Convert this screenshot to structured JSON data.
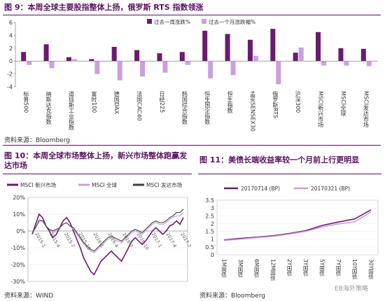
{
  "fig9": {
    "title": "图 9：本周全球主要股指整体上扬，俄罗斯 RTS 指数领涨",
    "source": "资料来源：Bloomberg"
  },
  "fig10": {
    "title": "图 10：本周全球市场整体上扬，新兴市场整体跑赢发达市场",
    "source": "资料来源：WIND"
  },
  "fig11": {
    "title": "图 11：美债长端收益率较一个月前上行更明显",
    "source": "资料来源：Bloomberg"
  },
  "watermark": "EB海外策略",
  "chart_data": [
    {
      "type": "bar",
      "categories": [
        "标普500",
        "纳斯达克指数",
        "道琼斯工业指数",
        "富时100",
        "德国DAX",
        "法国CAC40",
        "日经225",
        "韩国综合指数",
        "恒生国企指数",
        "恒生指数",
        "孟买SENSEX30",
        "俄罗斯RTS",
        "沪深300",
        "MSCI新兴市场",
        "MSCI全球",
        "MSCI发达市场"
      ],
      "series": [
        {
          "name": "过去一周涨跌%",
          "color": "#6a1b6e",
          "values": [
            1.4,
            2.6,
            0.6,
            0.3,
            2.2,
            1.7,
            1.2,
            1.4,
            4.7,
            4.2,
            3.3,
            5.0,
            1.3,
            4.5,
            2.0,
            1.9
          ]
        },
        {
          "name": "过去一个月涨跌幅%",
          "color": "#c9a0dc",
          "values": [
            -0.6,
            -1.1,
            0.3,
            -2.0,
            -3.0,
            -2.4,
            -1.8,
            -0.6,
            -2.7,
            -2.2,
            0.8,
            -3.6,
            2.1,
            -0.7,
            -0.7,
            -0.8
          ]
        }
      ],
      "ylim": [
        -4,
        6
      ],
      "yticks": [
        -4,
        -2,
        0,
        2,
        4,
        6
      ],
      "legend": "top-right"
    },
    {
      "type": "line",
      "series": [
        {
          "name": "MSCI 新兴市场",
          "color": "#6a1b6e",
          "values": [
            -2,
            4,
            10,
            8,
            3,
            0,
            -4,
            -2,
            2,
            6,
            8,
            5,
            0,
            -5,
            -10,
            -16,
            -20,
            -24,
            -26,
            -22,
            -18,
            -16,
            -14,
            -12,
            -14,
            -16,
            -18,
            -14,
            -10,
            -6,
            -4,
            -6,
            -8,
            -6,
            -3,
            0,
            2,
            0,
            -2,
            0,
            3,
            4,
            6,
            4,
            8
          ]
        },
        {
          "name": "MSCI 全球",
          "color": "#c9a0dc",
          "values": [
            -1,
            2,
            7,
            6,
            3,
            1,
            -1,
            0,
            2,
            4,
            5,
            3,
            1,
            -2,
            -5,
            -8,
            -10,
            -12,
            -13,
            -11,
            -9,
            -7,
            -5,
            -4,
            -5,
            -6,
            -7,
            -5,
            -3,
            -1,
            0,
            -1,
            -2,
            0,
            2,
            4,
            5,
            4,
            4,
            5,
            7,
            8,
            9,
            9,
            11
          ]
        },
        {
          "name": "MSCI 发达市场",
          "color": "#404040",
          "values": [
            -1,
            2,
            6,
            6,
            3,
            1,
            0,
            1,
            2,
            4,
            5,
            3,
            2,
            -1,
            -4,
            -7,
            -9,
            -11,
            -12,
            -10,
            -8,
            -6,
            -4,
            -3,
            -4,
            -5,
            -6,
            -4,
            -2,
            0,
            1,
            0,
            -1,
            1,
            3,
            5,
            6,
            5,
            5,
            6,
            8,
            9,
            11,
            11,
            13
          ]
        }
      ],
      "x_tick_labels": [
        "2015-1",
        "2015-4",
        "2015-7",
        "2015-10",
        "2016-1",
        "2016-4",
        "2016-7",
        "2016-10",
        "2017-1",
        "2017-4",
        "2017-7"
      ],
      "yticks": [
        "-30%",
        "-20%",
        "-10%",
        "0%",
        "10%",
        "20%"
      ],
      "ylim": [
        -30,
        20
      ],
      "legend": "top"
    },
    {
      "type": "line",
      "categories": [
        "1M国债",
        "3M国债",
        "6M国债",
        "12M国债",
        "2Y国债",
        "3Y国债",
        "5Y国债",
        "7Y国债",
        "10Y国债",
        "30Y国债"
      ],
      "series": [
        {
          "name": "20170714 (BP)",
          "color": "#6a1b6e",
          "values": [
            0.95,
            1.05,
            1.13,
            1.22,
            1.37,
            1.55,
            1.88,
            2.1,
            2.3,
            2.88
          ]
        },
        {
          "name": "20170321 (BP)",
          "color": "#c9a0dc",
          "values": [
            0.92,
            1.0,
            1.1,
            1.18,
            1.33,
            1.5,
            1.78,
            1.98,
            2.12,
            2.75
          ]
        }
      ],
      "ylim": [
        0,
        3.5
      ],
      "yticks": [
        "0",
        "0.5",
        "1",
        "1.5",
        "2",
        "2.5",
        "3",
        "3.5"
      ],
      "legend": "top"
    }
  ]
}
